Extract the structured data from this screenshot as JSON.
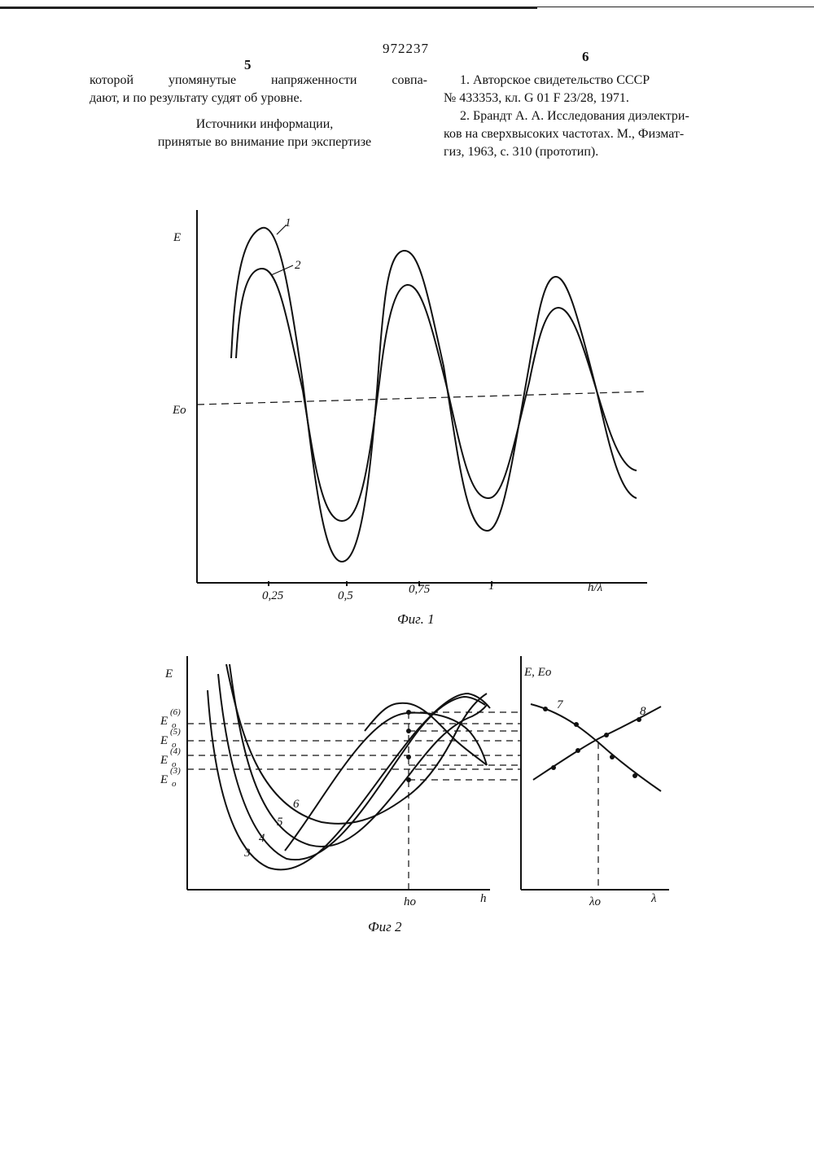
{
  "header": {
    "patent_number": "972237",
    "col_left_num": "5",
    "col_right_num": "6"
  },
  "left_text": {
    "line1": "которой упомянутые напряженности совпа-",
    "line2": "дают, и по результату судят об уровне.",
    "sources_title_1": "Источники информации,",
    "sources_title_2": "принятые во внимание при экспертизе"
  },
  "references": {
    "ref1_line1": "1. Авторское свидетельство СССР",
    "ref1_line2": "№ 433353, кл. G 01 F 23/28, 1971.",
    "ref2_line1": "2. Брандт А. А. Исследования диэлектри-",
    "ref2_line2": "ков на сверхвысоких частотах. М., Физмат-",
    "ref2_line3": "гиз, 1963, с. 310 (прототип)."
  },
  "fig1": {
    "caption": "Фиг. 1",
    "y_label": "E",
    "ref_level_label": "Eo",
    "x_label": "h/λ",
    "x_ticks": [
      "0,25",
      "0,5",
      "0,75",
      "1"
    ],
    "curve_labels": [
      "1",
      "2"
    ]
  },
  "fig2": {
    "caption": "Фиг 2",
    "left_y_label": "E",
    "left_x_label": "h",
    "h0_label": "ho",
    "level_labels": [
      {
        "base": "E",
        "sup": "(6)",
        "sub": "o"
      },
      {
        "base": "E",
        "sup": "(5)",
        "sub": "o"
      },
      {
        "base": "E",
        "sup": "(4)",
        "sub": "o"
      },
      {
        "base": "E",
        "sup": "(3)",
        "sub": "o"
      }
    ],
    "curve_labels": [
      "3",
      "4",
      "5",
      "6"
    ],
    "right_y_label": "E, Eo",
    "right_x_label": "λ",
    "lambda0_label": "λo",
    "right_curve_labels": [
      "7",
      "8"
    ]
  }
}
